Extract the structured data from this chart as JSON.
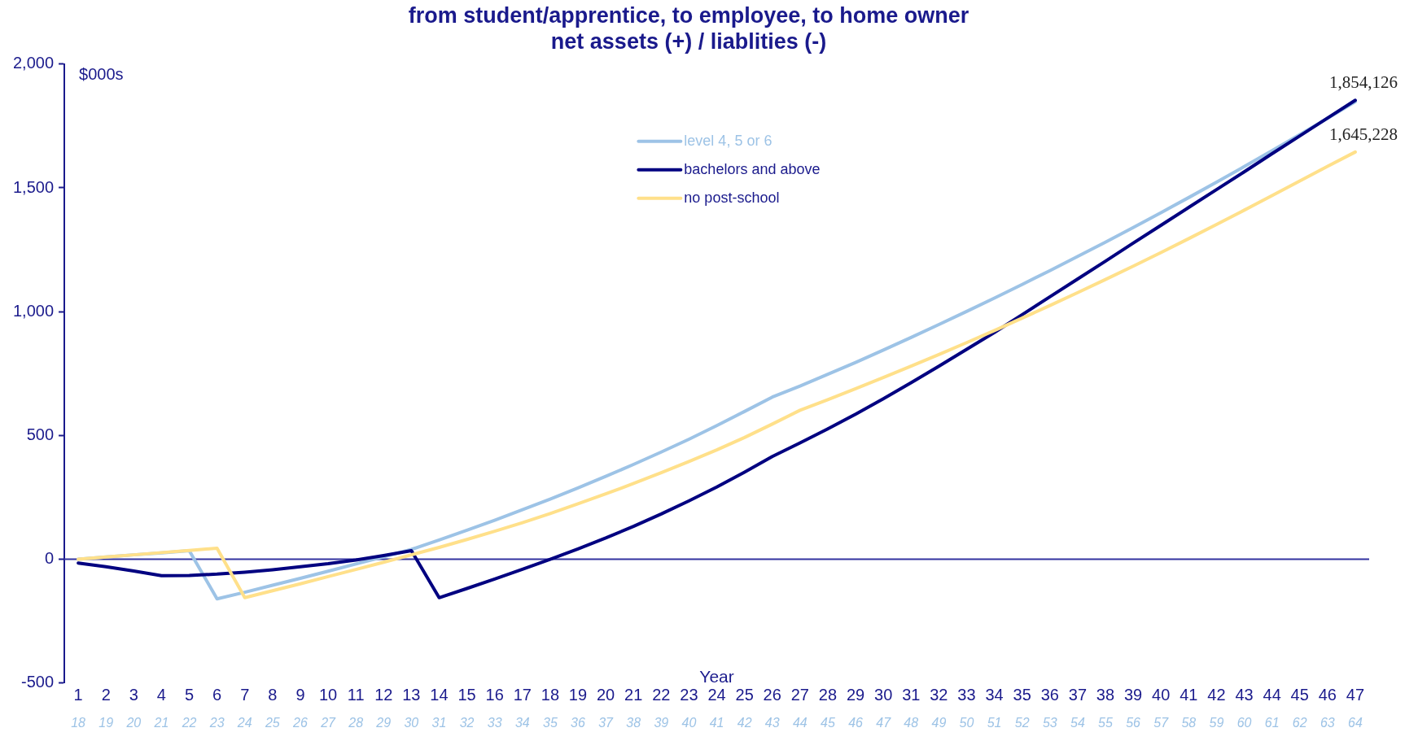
{
  "chart_data": {
    "type": "line",
    "title": "from student/apprentice, to employee, to home owner",
    "subtitle": "net assets (+) / liablities (-)",
    "ylabel": "$000s",
    "xlabel": "Year",
    "x": [
      1,
      2,
      3,
      4,
      5,
      6,
      7,
      8,
      9,
      10,
      11,
      12,
      13,
      14,
      15,
      16,
      17,
      18,
      19,
      20,
      21,
      22,
      23,
      24,
      25,
      26,
      27,
      28,
      29,
      30,
      31,
      32,
      33,
      34,
      35,
      36,
      37,
      38,
      39,
      40,
      41,
      42,
      43,
      44,
      45,
      46,
      47
    ],
    "series": [
      {
        "name": "level 4, 5 or 6",
        "color": "#9dc3e6",
        "values": [
          0,
          9,
          18,
          26,
          35,
          -160,
          -133,
          -105,
          -77,
          -48,
          -19,
          10,
          40,
          78,
          117,
          158,
          200,
          243,
          288,
          335,
          383,
          433,
          485,
          540,
          597,
          655,
          700,
          747,
          795,
          845,
          896,
          948,
          1001,
          1055,
          1110,
          1166,
          1223,
          1281,
          1340,
          1400,
          1461,
          1523,
          1586,
          1650,
          1715,
          1781,
          1848
        ]
      },
      {
        "name": "bachelors and above",
        "color": "#000080",
        "values": [
          -15,
          -30,
          -47,
          -66,
          -65,
          -60,
          -52,
          -42,
          -30,
          -18,
          -3,
          15,
          35,
          -155,
          -118,
          -80,
          -40,
          0,
          42,
          86,
          133,
          183,
          236,
          292,
          352,
          415,
          470,
          527,
          586,
          648,
          713,
          780,
          848,
          916,
          988,
          1060,
          1132,
          1204,
          1277,
          1349,
          1421,
          1493,
          1565,
          1638,
          1710,
          1782,
          1854
        ]
      },
      {
        "name": "no post-school",
        "color": "#ffe08a",
        "values": [
          0,
          9,
          18,
          27,
          36,
          45,
          -155,
          -127,
          -99,
          -70,
          -41,
          -12,
          18,
          48,
          80,
          113,
          148,
          185,
          224,
          264,
          306,
          350,
          395,
          442,
          492,
          546,
          602,
          645,
          689,
          734,
          780,
          827,
          875,
          924,
          974,
          1025,
          1077,
          1130,
          1184,
          1239,
          1295,
          1352,
          1410,
          1469,
          1528,
          1587,
          1645
        ]
      }
    ],
    "annotations": [
      {
        "text": "1,854,126",
        "x": 47,
        "y": 1854
      },
      {
        "text": "1,645,228",
        "x": 47,
        "y": 1645
      }
    ],
    "xlim": [
      0.5,
      47.5
    ],
    "xticks": [
      1,
      2,
      3,
      4,
      5,
      6,
      7,
      8,
      9,
      10,
      11,
      12,
      13,
      14,
      15,
      16,
      17,
      18,
      19,
      20,
      21,
      22,
      23,
      24,
      25,
      26,
      27,
      28,
      29,
      30,
      31,
      32,
      33,
      34,
      35,
      36,
      37,
      38,
      39,
      40,
      41,
      42,
      43,
      44,
      45,
      46,
      47
    ],
    "x2lim": [
      17.5,
      64.5
    ],
    "x2ticks": [
      18,
      19,
      20,
      21,
      22,
      23,
      24,
      25,
      26,
      27,
      28,
      29,
      30,
      31,
      32,
      33,
      34,
      35,
      36,
      37,
      38,
      39,
      40,
      41,
      42,
      43,
      44,
      45,
      46,
      47,
      48,
      49,
      50,
      51,
      52,
      53,
      54,
      55,
      56,
      57,
      58,
      59,
      60,
      61,
      62,
      63,
      64
    ],
    "ylim": [
      -500,
      2000
    ],
    "yticks": [
      {
        "value": -500,
        "label": "-500"
      },
      {
        "value": 0,
        "label": "0"
      },
      {
        "value": 500,
        "label": "500"
      },
      {
        "value": 1000,
        "label": "1,000"
      },
      {
        "value": 1500,
        "label": "1,500"
      },
      {
        "value": 2000,
        "label": "2,000"
      }
    ],
    "ref_lines": [
      {
        "axis": "y",
        "value": 0,
        "color": "#3333a0"
      }
    ],
    "grid": false,
    "legend": "top",
    "marker": "none",
    "line_style": "solid"
  }
}
